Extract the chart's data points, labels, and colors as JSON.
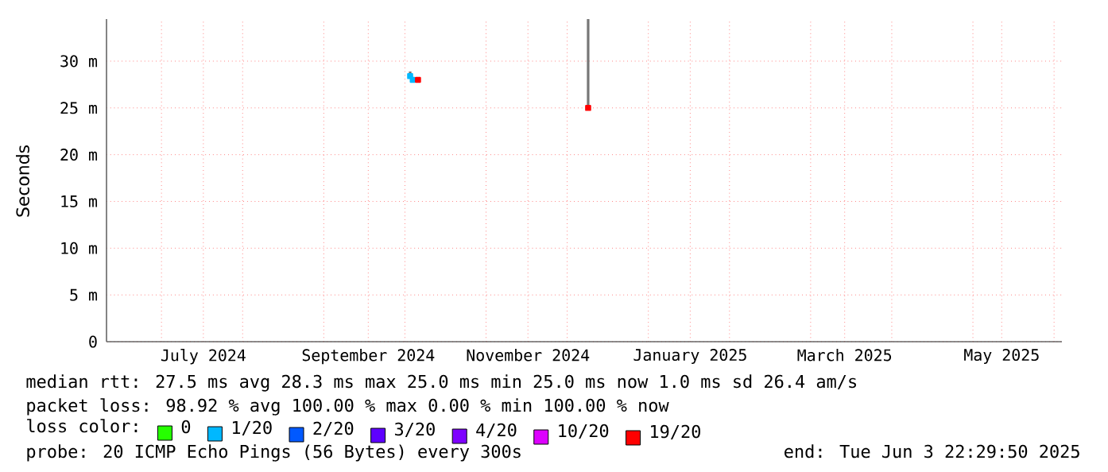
{
  "chart_data": {
    "type": "line",
    "ylabel": "Seconds",
    "legend_title": "loss color:",
    "legend": "bottom",
    "grid": true,
    "xlim": [
      "2024-06-03",
      "2025-06-03"
    ],
    "xticks": [
      {
        "value": "2024-06-24",
        "label": null
      },
      {
        "value": "2024-07-10",
        "label": "July 2024"
      },
      {
        "value": "2024-07-25",
        "label": null
      },
      {
        "value": "2024-08-25",
        "label": null
      },
      {
        "value": "2024-09-11",
        "label": "September 2024"
      },
      {
        "value": "2024-09-25",
        "label": null
      },
      {
        "value": "2024-10-26",
        "label": null
      },
      {
        "value": "2024-11-11",
        "label": "November 2024"
      },
      {
        "value": "2024-11-26",
        "label": null
      },
      {
        "value": "2024-12-27",
        "label": null
      },
      {
        "value": "2025-01-12",
        "label": "January 2025"
      },
      {
        "value": "2025-01-27",
        "label": null
      },
      {
        "value": "2025-02-27",
        "label": null
      },
      {
        "value": "2025-03-12",
        "label": "March 2025"
      },
      {
        "value": "2025-03-30",
        "label": null
      },
      {
        "value": "2025-04-30",
        "label": null
      },
      {
        "value": "2025-05-11",
        "label": "May 2025"
      },
      {
        "value": "2025-05-31",
        "label": null
      }
    ],
    "ylim": [
      0,
      34.5
    ],
    "yticks": [
      0,
      {
        "value": 5,
        "label": "5 m"
      },
      {
        "value": 10,
        "label": "10 m"
      },
      {
        "value": 15,
        "label": "15 m"
      },
      {
        "value": 20,
        "label": "20 m"
      },
      {
        "value": 25,
        "label": "25 m"
      },
      {
        "value": 30,
        "label": "30 m"
      }
    ],
    "series": [
      {
        "color": "#777777",
        "x": [
          "2024-09-27",
          "2024-09-27",
          "2024-10-30",
          "2024-12-04",
          "2024-12-04"
        ],
        "values": [
          28.2,
          28.9,
          null,
          25.0,
          34.5
        ]
      },
      {
        "name": "0",
        "color": "#26ff00",
        "type": "scatter"
      },
      {
        "name": "1/20",
        "color": "#00b8ff",
        "type": "scatter",
        "x": [
          "2024-09-27",
          "2024-09-28"
        ],
        "values": [
          28.4,
          28.0
        ]
      },
      {
        "name": "2/20",
        "color": "#0059ff",
        "type": "scatter"
      },
      {
        "name": "3/20",
        "color": "#5e00ff",
        "type": "scatter"
      },
      {
        "name": "4/20",
        "color": "#7e00ff",
        "type": "scatter"
      },
      {
        "name": "10/20",
        "color": "#dd00ff",
        "type": "scatter"
      },
      {
        "name": "19/20",
        "color": "#ff0000",
        "type": "scatter",
        "x": [
          "2024-09-30",
          "2024-12-04"
        ],
        "values": [
          28.0,
          25.0
        ]
      }
    ],
    "annotations": [
      "median rtt:  27.5 ms avg  28.3 ms max  25.0 ms min  25.0 ms now  1.0 ms sd  26.4   am/s",
      "packet loss: 98.92 % avg  100.00 % max  0.00 % min  100.00 % now",
      "probe:       20 ICMP Echo Pings (56 Bytes) every 300s",
      "end: Tue Jun  3 22:29:50 2025"
    ]
  }
}
